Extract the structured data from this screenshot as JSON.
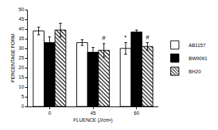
{
  "chart_data": {
    "type": "bar",
    "x_label": "FLUENCE (J/cm²)",
    "y_label": "PERCENTAGE FORM",
    "categories": [
      "0",
      "45",
      "60"
    ],
    "series": [
      {
        "name": "AB1157",
        "color": "#ffffff",
        "values": [
          39,
          33,
          30
        ],
        "errors": [
          2,
          1.5,
          3
        ]
      },
      {
        "name": "BW9091",
        "color": "#000000",
        "values": [
          33,
          28,
          38.5
        ],
        "errors": [
          3,
          2.5,
          1
        ]
      },
      {
        "name": "BH20",
        "color": "#ffffff",
        "values": [
          39.5,
          29,
          31
        ],
        "errors": [
          3.5,
          3.5,
          2
        ]
      }
    ],
    "annotations": [
      {
        "category": "60",
        "series": "AB1157",
        "text": "*"
      },
      {
        "category": "45",
        "series": "BH20",
        "text": "#"
      },
      {
        "category": "60",
        "series": "BH20",
        "text": "#"
      }
    ],
    "ylim": [
      0,
      50
    ],
    "yticks": [
      0,
      5,
      10,
      15,
      20,
      25,
      30,
      35,
      40,
      45,
      50
    ],
    "grid": false,
    "legend": "right"
  }
}
